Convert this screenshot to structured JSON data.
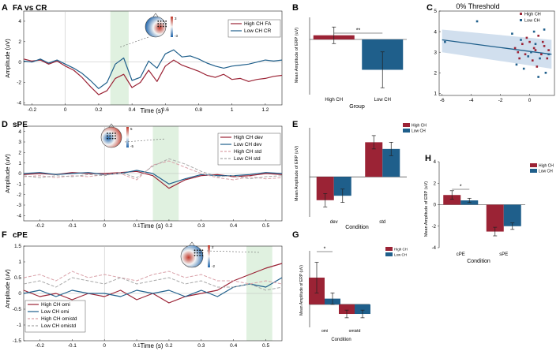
{
  "figure": {
    "panel_letters": [
      "A",
      "B",
      "C",
      "D",
      "E",
      "F",
      "G",
      "H"
    ],
    "colors": {
      "high": "#9b2335",
      "low": "#1f5f8b",
      "high_std": "#d9a0a8",
      "low_std": "#a8a8a8",
      "window": "#dbeedb",
      "ci": "#c6d7ea",
      "topo_red": "#c0392b",
      "topo_blue": "#2166ac"
    }
  },
  "chart_data": [
    {
      "id": "A",
      "type": "line",
      "title": "FA vs CR",
      "xlabel": "Time (s)",
      "ylabel": "Amplitude (uV)",
      "xlim": [
        -0.25,
        1.3
      ],
      "ylim": [
        -4.2,
        5.0
      ],
      "xticks": [
        "-0.2",
        "0",
        "0.2",
        "0.4",
        "0.6",
        "0.8",
        "1",
        "1.2"
      ],
      "xtick_values": [
        -0.2,
        0,
        0.2,
        0.4,
        0.6,
        0.8,
        1.0,
        1.2
      ],
      "yticks": [
        "-4",
        "-2",
        "0",
        "2",
        "4"
      ],
      "ytick_values": [
        -4,
        -2,
        0,
        2,
        4
      ],
      "window": [
        0.27,
        0.38
      ],
      "topo_scale": [
        "3",
        "-3"
      ],
      "series": [
        {
          "name": "High CH FA",
          "style": "high",
          "x": [
            -0.25,
            -0.2,
            -0.15,
            -0.1,
            -0.05,
            0,
            0.05,
            0.1,
            0.15,
            0.2,
            0.25,
            0.3,
            0.35,
            0.4,
            0.45,
            0.5,
            0.55,
            0.6,
            0.65,
            0.7,
            0.75,
            0.8,
            0.85,
            0.9,
            0.95,
            1.0,
            1.05,
            1.1,
            1.15,
            1.2,
            1.25,
            1.3
          ],
          "y": [
            0.3,
            0.1,
            0.2,
            -0.2,
            0.1,
            -0.4,
            -0.8,
            -1.5,
            -2.4,
            -3.2,
            -2.8,
            -1.6,
            -1.2,
            -2.5,
            -2.0,
            -0.8,
            -1.9,
            -0.4,
            0.2,
            -0.3,
            -0.6,
            -0.9,
            -1.3,
            -1.5,
            -1.2,
            -1.7,
            -1.6,
            -1.9,
            -1.7,
            -1.6,
            -1.4,
            -1.3
          ]
        },
        {
          "name": "Low CH CR",
          "style": "low",
          "x": [
            -0.25,
            -0.2,
            -0.15,
            -0.1,
            -0.05,
            0,
            0.05,
            0.1,
            0.15,
            0.2,
            0.25,
            0.3,
            0.35,
            0.4,
            0.45,
            0.5,
            0.55,
            0.6,
            0.65,
            0.7,
            0.75,
            0.8,
            0.85,
            0.9,
            0.95,
            1.0,
            1.05,
            1.1,
            1.15,
            1.2,
            1.25,
            1.3
          ],
          "y": [
            0.1,
            0.0,
            0.3,
            -0.1,
            0.2,
            -0.2,
            -0.6,
            -1.1,
            -1.8,
            -2.6,
            -2.0,
            -0.2,
            0.4,
            -1.8,
            -1.5,
            0.1,
            -0.6,
            0.8,
            1.2,
            0.5,
            0.6,
            0.3,
            -0.1,
            -0.4,
            -0.6,
            -0.4,
            -0.3,
            -0.2,
            0.0,
            0.2,
            0.1,
            0.2
          ]
        }
      ]
    },
    {
      "id": "B",
      "type": "bar",
      "xlabel": "Group",
      "ylabel": "Mean Amplitude of ERP (uV)",
      "categories": [
        "High CH",
        "Low CH"
      ],
      "values": [
        0.15,
        -1.1
      ],
      "errors": [
        0.3,
        0.65
      ],
      "ylim": [
        -2.0,
        0.8
      ],
      "significance": "**"
    },
    {
      "id": "C",
      "type": "scatter",
      "title": "0% Threshold",
      "xlim": [
        -6.2,
        1.7
      ],
      "ylim": [
        0.9,
        5.0
      ],
      "xticks": [
        "-6",
        "-4",
        "-2",
        "0"
      ],
      "xtick_values": [
        -6,
        -4,
        -2,
        0
      ],
      "yticks": [
        "1",
        "2",
        "3",
        "4",
        "5"
      ],
      "ytick_values": [
        1,
        2,
        3,
        4,
        5
      ],
      "legend": [
        "High CH",
        "Low CH"
      ],
      "fit": {
        "x": [
          -6.0,
          1.5
        ],
        "y": [
          3.6,
          2.9
        ],
        "ci_upper": [
          4.1,
          3.6
        ],
        "ci_lower": [
          3.0,
          2.2
        ]
      },
      "points_high": [
        [
          -1.0,
          3.2
        ],
        [
          -0.7,
          2.7
        ],
        [
          -0.5,
          3.4
        ],
        [
          -0.3,
          2.9
        ],
        [
          0.0,
          3.5
        ],
        [
          0.2,
          2.6
        ],
        [
          0.4,
          3.1
        ],
        [
          0.6,
          3.8
        ],
        [
          0.8,
          2.9
        ],
        [
          1.0,
          3.3
        ],
        [
          1.2,
          2.7
        ],
        [
          -0.2,
          3.7
        ],
        [
          0.5,
          2.3
        ],
        [
          0.9,
          3.5
        ],
        [
          -0.8,
          3.0
        ],
        [
          0.3,
          3.2
        ],
        [
          1.3,
          3.1
        ]
      ],
      "points_low": [
        [
          -5.8,
          3.5
        ],
        [
          -3.6,
          4.5
        ],
        [
          -1.2,
          3.9
        ],
        [
          -0.9,
          2.4
        ],
        [
          -0.6,
          3.6
        ],
        [
          -0.4,
          2.2
        ],
        [
          0.1,
          3.0
        ],
        [
          0.3,
          4.0
        ],
        [
          0.6,
          1.8
        ],
        [
          0.7,
          2.7
        ],
        [
          1.0,
          4.1
        ],
        [
          1.1,
          2.0
        ],
        [
          -0.1,
          2.8
        ],
        [
          0.4,
          3.4
        ],
        [
          1.3,
          2.9
        ]
      ]
    },
    {
      "id": "D",
      "type": "line",
      "title": "sPE",
      "xlabel": "Time (s)",
      "ylabel": "Amplitude (uV)",
      "xlim": [
        -0.25,
        0.55
      ],
      "ylim": [
        -4.5,
        4.5
      ],
      "xticks": [
        "-0.2",
        "-0.1",
        "0",
        "0.1",
        "0.2",
        "0.3",
        "0.4",
        "0.5"
      ],
      "xtick_values": [
        -0.2,
        -0.1,
        0,
        0.1,
        0.2,
        0.3,
        0.4,
        0.5
      ],
      "yticks": [
        "-4",
        "-3",
        "-2",
        "-1",
        "0",
        "1",
        "2",
        "3",
        "4"
      ],
      "ytick_values": [
        -4,
        -3,
        -2,
        -1,
        0,
        1,
        2,
        3,
        4
      ],
      "window": [
        0.15,
        0.23
      ],
      "topo_scale": [
        "5",
        "-5"
      ],
      "series": [
        {
          "name": "High CH dev",
          "style": "high",
          "x": [
            -0.25,
            -0.2,
            -0.15,
            -0.1,
            -0.05,
            0,
            0.05,
            0.1,
            0.15,
            0.2,
            0.25,
            0.3,
            0.35,
            0.4,
            0.45,
            0.5,
            0.55
          ],
          "y": [
            -0.1,
            0.0,
            -0.1,
            0.1,
            0.0,
            0.0,
            0.1,
            0.2,
            -0.2,
            -1.4,
            -0.6,
            -0.2,
            -0.1,
            -0.3,
            -0.2,
            0.0,
            -0.1
          ]
        },
        {
          "name": "Low CH dev",
          "style": "low",
          "x": [
            -0.25,
            -0.2,
            -0.15,
            -0.1,
            -0.05,
            0,
            0.05,
            0.1,
            0.15,
            0.2,
            0.25,
            0.3,
            0.35,
            0.4,
            0.45,
            0.5,
            0.55
          ],
          "y": [
            0.0,
            0.1,
            -0.1,
            0.0,
            0.1,
            -0.1,
            0.0,
            0.3,
            0.0,
            -1.0,
            -0.5,
            -0.1,
            -0.2,
            -0.2,
            -0.1,
            0.1,
            0.0
          ]
        },
        {
          "name": "High CH std",
          "style": "high_std",
          "x": [
            -0.25,
            -0.2,
            -0.15,
            -0.1,
            -0.05,
            0,
            0.05,
            0.1,
            0.15,
            0.2,
            0.25,
            0.3,
            0.35,
            0.4,
            0.45,
            0.5,
            0.55
          ],
          "y": [
            -0.3,
            -0.2,
            -0.4,
            -0.2,
            -0.3,
            -0.1,
            0.0,
            -0.6,
            0.8,
            1.2,
            0.6,
            0.0,
            -0.4,
            -0.6,
            -0.3,
            -0.5,
            -0.4
          ]
        },
        {
          "name": "Low CH std",
          "style": "low_std",
          "x": [
            -0.25,
            -0.2,
            -0.15,
            -0.1,
            -0.05,
            0,
            0.05,
            0.1,
            0.15,
            0.2,
            0.25,
            0.3,
            0.35,
            0.4,
            0.45,
            0.5,
            0.55
          ],
          "y": [
            -0.2,
            -0.4,
            -0.2,
            -0.3,
            -0.1,
            -0.2,
            0.1,
            -0.4,
            0.7,
            1.4,
            0.9,
            0.2,
            -0.3,
            -0.2,
            -0.5,
            -0.3,
            -0.2
          ]
        }
      ]
    },
    {
      "id": "E",
      "type": "bar",
      "xlabel": "Condition",
      "ylabel": "Mean Amplitude of ERP (uV)",
      "categories": [
        "dev",
        "std"
      ],
      "series": [
        {
          "name": "High CH",
          "style": "high",
          "values": [
            -1.05,
            1.55
          ],
          "errors": [
            0.3,
            0.3
          ]
        },
        {
          "name": "Low CH",
          "style": "low",
          "values": [
            -0.85,
            1.25
          ],
          "errors": [
            0.3,
            0.3
          ]
        }
      ],
      "ylim": [
        -1.8,
        2.2
      ]
    },
    {
      "id": "F",
      "type": "line",
      "title": "cPE",
      "xlabel": "Time (s)",
      "ylabel": "Amplitude (uV)",
      "xlim": [
        -0.25,
        0.55
      ],
      "ylim": [
        -1.5,
        1.5
      ],
      "xticks": [
        "-0.2",
        "-0.1",
        "0",
        "0.1",
        "0.2",
        "0.3",
        "0.4",
        "0.5"
      ],
      "xtick_values": [
        -0.2,
        -0.1,
        0,
        0.1,
        0.2,
        0.3,
        0.4,
        0.5
      ],
      "yticks": [
        "-1.5",
        "-1",
        "-0.5",
        "0",
        "0.5",
        "1",
        "1.5"
      ],
      "ytick_values": [
        -1.5,
        -1,
        -0.5,
        0,
        0.5,
        1,
        1.5
      ],
      "window": [
        0.44,
        0.52
      ],
      "topo_scale": [
        "2",
        "-2"
      ],
      "series": [
        {
          "name": "High CH omi",
          "style": "high",
          "x": [
            -0.25,
            -0.2,
            -0.15,
            -0.1,
            -0.05,
            0,
            0.05,
            0.1,
            0.15,
            0.2,
            0.25,
            0.3,
            0.35,
            0.4,
            0.45,
            0.5,
            0.55
          ],
          "y": [
            0.1,
            -0.1,
            0.0,
            -0.2,
            0.0,
            -0.1,
            0.1,
            -0.2,
            0.0,
            -0.3,
            -0.1,
            0.0,
            0.1,
            0.4,
            0.6,
            0.8,
            0.95
          ]
        },
        {
          "name": "Low CH omi",
          "style": "low",
          "x": [
            -0.25,
            -0.2,
            -0.15,
            -0.1,
            -0.05,
            0,
            0.05,
            0.1,
            0.15,
            0.2,
            0.25,
            0.3,
            0.35,
            0.4,
            0.45,
            0.5,
            0.55
          ],
          "y": [
            0.0,
            0.1,
            -0.1,
            0.1,
            0.0,
            0.0,
            -0.1,
            0.1,
            0.0,
            0.1,
            -0.1,
            0.1,
            -0.1,
            0.2,
            0.3,
            0.2,
            0.5
          ]
        },
        {
          "name": "High CH omistd",
          "style": "high_std",
          "x": [
            -0.25,
            -0.2,
            -0.15,
            -0.1,
            -0.05,
            0,
            0.05,
            0.1,
            0.15,
            0.2,
            0.25,
            0.3,
            0.35,
            0.4,
            0.45,
            0.5,
            0.55
          ],
          "y": [
            0.5,
            0.6,
            0.4,
            0.7,
            0.5,
            0.6,
            0.5,
            0.4,
            0.6,
            0.7,
            0.5,
            0.6,
            0.4,
            0.4,
            0.3,
            0.4,
            0.3
          ]
        },
        {
          "name": "Low CH omistd",
          "style": "low_std",
          "x": [
            -0.25,
            -0.2,
            -0.15,
            -0.1,
            -0.05,
            0,
            0.05,
            0.1,
            0.15,
            0.2,
            0.25,
            0.3,
            0.35,
            0.4,
            0.45,
            0.5,
            0.55
          ],
          "y": [
            0.3,
            0.4,
            0.2,
            0.5,
            0.4,
            0.3,
            0.5,
            0.3,
            0.4,
            0.5,
            0.3,
            0.4,
            0.2,
            0.2,
            0.3,
            0.1,
            0.2
          ]
        }
      ]
    },
    {
      "id": "G",
      "type": "bar",
      "xlabel": "Condition",
      "ylabel": "Mean Amplitude of ERP (uV)",
      "categories": [
        "omi",
        "omistd"
      ],
      "series": [
        {
          "name": "High CH",
          "style": "high",
          "values": [
            0.7,
            -0.25
          ],
          "errors": [
            0.4,
            0.1
          ]
        },
        {
          "name": "Low CH",
          "style": "low",
          "values": [
            0.15,
            -0.25
          ],
          "errors": [
            0.15,
            0.1
          ]
        }
      ],
      "ylim": [
        -0.6,
        1.4
      ],
      "significance": "*"
    },
    {
      "id": "H",
      "type": "bar",
      "xlabel": "Condition",
      "ylabel": "Mean Amplitude of ERP (uV)",
      "categories": [
        "cPE",
        "sPE"
      ],
      "series": [
        {
          "name": "High CH",
          "style": "high",
          "values": [
            0.9,
            -2.5
          ],
          "errors": [
            0.4,
            0.4
          ]
        },
        {
          "name": "Low CH",
          "style": "low",
          "values": [
            0.4,
            -2.0
          ],
          "errors": [
            0.2,
            0.3
          ]
        }
      ],
      "ylim": [
        -4,
        4
      ],
      "yticks": [
        "-4",
        "-2",
        "0",
        "2",
        "4"
      ],
      "ytick_values": [
        -4,
        -2,
        0,
        2,
        4
      ],
      "significance": "*"
    }
  ]
}
